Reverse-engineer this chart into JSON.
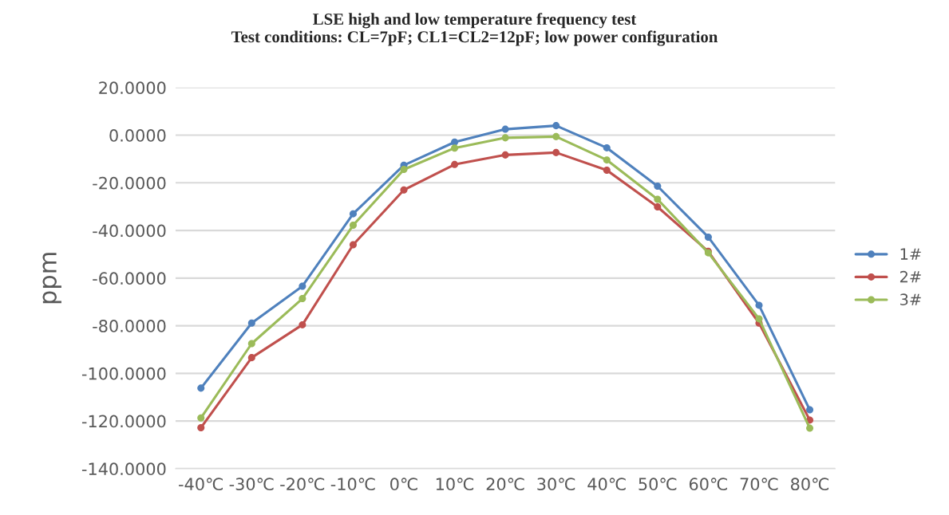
{
  "chart_data": {
    "type": "line",
    "title": "LSE high and low temperature frequency test\nTest conditions: CL=7pF; CL1=CL2=12pF; low power configuration",
    "ylabel": "ppm",
    "categories": [
      "-40℃",
      "-30℃",
      "-20℃",
      "-10℃",
      "0℃",
      "10℃",
      "20℃",
      "30℃",
      "40℃",
      "50℃",
      "60℃",
      "70℃",
      "80℃"
    ],
    "series": [
      {
        "name": "1#",
        "color": "#4f81bd",
        "values": [
          -106.2,
          -78.9,
          -63.4,
          -33.0,
          -12.6,
          -2.9,
          2.5,
          4.0,
          -5.3,
          -21.4,
          -42.8,
          -71.4,
          -115.3
        ]
      },
      {
        "name": "2#",
        "color": "#c0504d",
        "values": [
          -122.8,
          -93.4,
          -79.6,
          -46.0,
          -23.0,
          -12.3,
          -8.3,
          -7.3,
          -14.7,
          -30.1,
          -48.8,
          -78.9,
          -119.6
        ]
      },
      {
        "name": "3#",
        "color": "#9bbb59",
        "values": [
          -118.7,
          -87.5,
          -68.6,
          -37.8,
          -14.4,
          -5.4,
          -1.1,
          -0.6,
          -10.4,
          -26.9,
          -49.4,
          -77.1,
          -123.0
        ]
      }
    ],
    "ylim": [
      -140,
      20
    ],
    "yticks": [
      {
        "value": -140,
        "label": "-140.0000"
      },
      {
        "value": -120,
        "label": "-120.0000"
      },
      {
        "value": -100,
        "label": "-100.0000"
      },
      {
        "value": -80,
        "label": "-80.0000"
      },
      {
        "value": -60,
        "label": "-60.0000"
      },
      {
        "value": -40,
        "label": "-40.0000"
      },
      {
        "value": -20,
        "label": "-20.0000"
      },
      {
        "value": 0,
        "label": "0.0000"
      },
      {
        "value": 20,
        "label": "20.0000"
      }
    ],
    "grid": "y",
    "legend": "right",
    "marker": "circle",
    "line_style": "solid"
  }
}
